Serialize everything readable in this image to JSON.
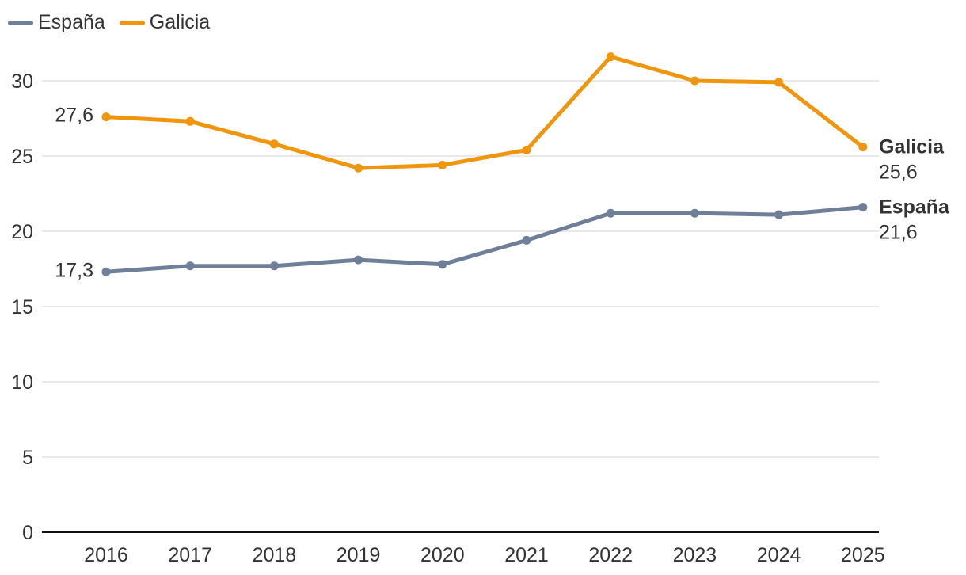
{
  "chart_data": {
    "type": "line",
    "title": "",
    "xlabel": "",
    "ylabel": "",
    "x": [
      "2016",
      "2017",
      "2018",
      "2019",
      "2020",
      "2021",
      "2022",
      "2023",
      "2024",
      "2025"
    ],
    "ylim": [
      0,
      32
    ],
    "yticks": [
      0,
      5,
      10,
      15,
      20,
      25,
      30
    ],
    "grid": true,
    "legend": "top-left",
    "series": [
      {
        "name": "España",
        "color": "#6f7f98",
        "values": [
          17.3,
          17.7,
          17.7,
          18.1,
          17.8,
          19.4,
          21.2,
          21.2,
          21.1,
          21.6
        ],
        "start_label": "17,3",
        "end_label": "21,6"
      },
      {
        "name": "Galicia",
        "color": "#f0950e",
        "values": [
          27.6,
          27.3,
          25.8,
          24.2,
          24.4,
          25.4,
          31.6,
          30.0,
          29.9,
          25.6
        ],
        "start_label": "27,6",
        "end_label": "25,6"
      }
    ]
  }
}
